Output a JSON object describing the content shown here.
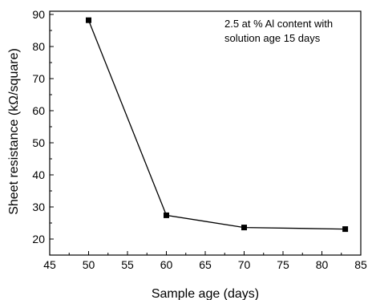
{
  "chart_data": {
    "type": "line",
    "title": "",
    "xlabel": "Sample age (days)",
    "ylabel": "Sheet resistance (kΩ/square)",
    "xlim": [
      45,
      85
    ],
    "ylim": [
      15,
      91
    ],
    "xticks": [
      45,
      50,
      55,
      60,
      65,
      70,
      75,
      80,
      85
    ],
    "yticks": [
      20,
      30,
      40,
      50,
      60,
      70,
      80,
      90
    ],
    "grid": false,
    "series": [
      {
        "marker": "square",
        "color": "#000000",
        "points": [
          {
            "x": 50,
            "y": 88.2
          },
          {
            "x": 60,
            "y": 27.4
          },
          {
            "x": 70,
            "y": 23.6
          },
          {
            "x": 83,
            "y": 23.1
          }
        ]
      }
    ],
    "annotation": {
      "lines": [
        "2.5 at % Al content with",
        "solution age 15 days"
      ],
      "placement": "top-right"
    }
  }
}
